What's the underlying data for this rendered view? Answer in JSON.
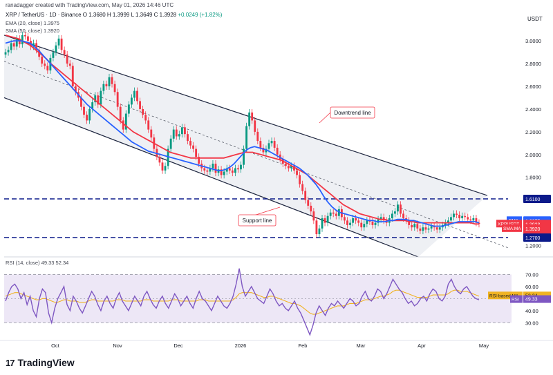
{
  "header": {
    "credit": "ranadagger created with TradingView.com, May 01, 2026 14:46 UTC",
    "currency": "USDT"
  },
  "symbol_line": {
    "symbol": "XRP / TetherUS · 1D · Binance",
    "ohlc": "O 1.3680  H 1.3999  L 1.3649  C 1.3928",
    "change": "+0.0249 (+1.82%)"
  },
  "indicators": {
    "ema": "EMA (20, close)  1.3975",
    "sma": "SMA (50, close)  1.3920",
    "rsi": "RSI (14, close)  49.33  52.34"
  },
  "annotations": {
    "downtrend": "Downtrend line",
    "support": "Support line"
  },
  "right_labels": {
    "level_1610": "1.6100",
    "ema_tag": "EMA",
    "ema_val": "1.3975",
    "pair_tag": "XRPUSDT",
    "pair_val": "1.3928",
    "pair_chg": "-50.52%",
    "pair_time": "09:13:39",
    "sma_tag": "SMA:MA",
    "sma_val": "1.3920",
    "level_1270": "1.2700",
    "rsi_ma_tag": "RSI-based MA",
    "rsi_ma_val": "52.34",
    "rsi_tag": "RSI",
    "rsi_val": "49.33"
  },
  "logo": {
    "mark": "17",
    "name": "TradingView"
  },
  "colors": {
    "up": "#089981",
    "down": "#f23645",
    "ema": "#2962ff",
    "sma": "#f23645",
    "rsi": "#7e57c2",
    "rsi_ma": "#f0b323",
    "channel": "#1f2740"
  },
  "chart_data": {
    "type": "candlestick",
    "y_axis_ticks": [
      3.0,
      2.8,
      2.6,
      2.4,
      2.2,
      2.0,
      1.8,
      1.6,
      1.4,
      1.2
    ],
    "y_axis_labels": [
      "3.0000",
      "2.8000",
      "2.6000",
      "2.4000",
      "2.2000",
      "2.0000",
      "1.8000",
      "1.6000",
      "1.4000",
      "1.2000"
    ],
    "ylim": [
      1.1,
      3.25
    ],
    "x_axis_labels": [
      "Oct",
      "Nov",
      "Dec",
      "2026",
      "Feb",
      "Mar",
      "Apr",
      "May"
    ],
    "horizontal_levels": [
      1.61,
      1.27
    ],
    "series_close": [
      2.9,
      2.92,
      2.98,
      2.95,
      3.02,
      2.97,
      3.05,
      3.04,
      3.0,
      2.95,
      2.98,
      2.92,
      2.86,
      2.8,
      2.78,
      2.74,
      2.85,
      2.9,
      2.96,
      3.02,
      2.92,
      2.88,
      2.8,
      2.78,
      2.6,
      2.55,
      2.5,
      2.42,
      2.35,
      2.3,
      2.4,
      2.46,
      2.52,
      2.44,
      2.56,
      2.62,
      2.6,
      2.68,
      2.62,
      2.55,
      2.42,
      2.3,
      2.22,
      2.36,
      2.44,
      2.5,
      2.56,
      2.47,
      2.4,
      2.35,
      2.3,
      2.22,
      2.15,
      2.05,
      1.98,
      1.93,
      1.86,
      1.9,
      2.05,
      2.14,
      2.22,
      2.16,
      2.18,
      2.24,
      2.18,
      2.12,
      2.08,
      2.05,
      1.98,
      1.92,
      1.88,
      1.86,
      1.85,
      1.88,
      1.92,
      1.84,
      1.87,
      1.82,
      1.85,
      1.88,
      1.86,
      1.84,
      1.88,
      1.87,
      1.91,
      2.05,
      2.25,
      2.37,
      2.3,
      2.2,
      2.12,
      2.06,
      2.02,
      2.05,
      2.1,
      2.12,
      2.06,
      2.0,
      1.96,
      1.92,
      1.9,
      1.88,
      1.9,
      1.86,
      1.82,
      1.74,
      1.68,
      1.6,
      1.55,
      1.5,
      1.42,
      1.3,
      1.35,
      1.44,
      1.4,
      1.46,
      1.49,
      1.48,
      1.46,
      1.52,
      1.45,
      1.42,
      1.38,
      1.4,
      1.44,
      1.42,
      1.4,
      1.36,
      1.39,
      1.42,
      1.41,
      1.38,
      1.4,
      1.43,
      1.45,
      1.42,
      1.4,
      1.44,
      1.48,
      1.5,
      1.56,
      1.48,
      1.44,
      1.42,
      1.38,
      1.36,
      1.39,
      1.35,
      1.33,
      1.36,
      1.34,
      1.35,
      1.37,
      1.36,
      1.34,
      1.36,
      1.38,
      1.4,
      1.42,
      1.45,
      1.48,
      1.47,
      1.44,
      1.46,
      1.45,
      1.43,
      1.42,
      1.44,
      1.4,
      1.39
    ],
    "ema": [
      2.98,
      2.99,
      3.0,
      3.0,
      3.0,
      2.99,
      2.98,
      2.95,
      2.92,
      2.88,
      2.84,
      2.8,
      2.76,
      2.72,
      2.68,
      2.64,
      2.6,
      2.56,
      2.52,
      2.48,
      2.44,
      2.41,
      2.38,
      2.35,
      2.32,
      2.29,
      2.26,
      2.23,
      2.2,
      2.17,
      2.14,
      2.11,
      2.09,
      2.07,
      2.05,
      2.03,
      2.02,
      2.01,
      2.0,
      1.99,
      1.98,
      1.97,
      1.96,
      1.95,
      1.94,
      1.93,
      1.92,
      1.91,
      1.9,
      1.89,
      1.88,
      1.87,
      1.86,
      1.86,
      1.87,
      1.89,
      1.92,
      1.96,
      2.0,
      2.04,
      2.06,
      2.07,
      2.06,
      2.05,
      2.04,
      2.02,
      2.0,
      1.98,
      1.96,
      1.94,
      1.92,
      1.9,
      1.88,
      1.85,
      1.82,
      1.78,
      1.74,
      1.69,
      1.63,
      1.58,
      1.54,
      1.51,
      1.49,
      1.48,
      1.47,
      1.46,
      1.45,
      1.44,
      1.43,
      1.42,
      1.42,
      1.41,
      1.41,
      1.41,
      1.42,
      1.42,
      1.43,
      1.43,
      1.43,
      1.42,
      1.42,
      1.41,
      1.4,
      1.39,
      1.38,
      1.37,
      1.37,
      1.37,
      1.38,
      1.39,
      1.4,
      1.41,
      1.41,
      1.41,
      1.41,
      1.41,
      1.4
    ],
    "sma": [
      3.05,
      3.04,
      3.03,
      3.02,
      3.0,
      2.98,
      2.96,
      2.93,
      2.9,
      2.87,
      2.84,
      2.8,
      2.77,
      2.74,
      2.71,
      2.68,
      2.65,
      2.62,
      2.59,
      2.56,
      2.53,
      2.5,
      2.47,
      2.44,
      2.41,
      2.38,
      2.35,
      2.32,
      2.29,
      2.26,
      2.23,
      2.2,
      2.18,
      2.16,
      2.14,
      2.12,
      2.1,
      2.08,
      2.06,
      2.04,
      2.02,
      2.01,
      2.0,
      1.99,
      1.98,
      1.97,
      1.97,
      1.97,
      1.97,
      1.97,
      1.97,
      1.97,
      1.97,
      1.97,
      1.98,
      1.99,
      2.0,
      2.01,
      2.02,
      2.02,
      2.02,
      2.01,
      2.0,
      1.99,
      1.98,
      1.97,
      1.96,
      1.95,
      1.93,
      1.91,
      1.89,
      1.87,
      1.85,
      1.83,
      1.8,
      1.77,
      1.74,
      1.71,
      1.68,
      1.65,
      1.62,
      1.59,
      1.56,
      1.54,
      1.52,
      1.5,
      1.48,
      1.47,
      1.46,
      1.45,
      1.44,
      1.43,
      1.43,
      1.42,
      1.42,
      1.42,
      1.42,
      1.42,
      1.41,
      1.41,
      1.4,
      1.4,
      1.4,
      1.4,
      1.4,
      1.4,
      1.4,
      1.4,
      1.4,
      1.4,
      1.4,
      1.4,
      1.4,
      1.4,
      1.39,
      1.39
    ],
    "rsi_ticks": [
      70,
      60,
      50,
      40,
      30
    ],
    "rsi_tick_labels": [
      "70.00",
      "60.00",
      "50.00",
      "40.00",
      "30.00"
    ],
    "rsi_ylim": [
      17,
      80
    ],
    "rsi": [
      48,
      55,
      60,
      62,
      58,
      50,
      55,
      45,
      52,
      40,
      35,
      50,
      58,
      55,
      38,
      30,
      42,
      50,
      55,
      60,
      45,
      40,
      52,
      48,
      42,
      38,
      44,
      50,
      56,
      52,
      45,
      40,
      48,
      52,
      46,
      42,
      50,
      55,
      48,
      44,
      40,
      46,
      52,
      48,
      44,
      52,
      56,
      50,
      45,
      42,
      48,
      52,
      46,
      42,
      48,
      54,
      50,
      44,
      48,
      52,
      46,
      42,
      50,
      56,
      50,
      48,
      44,
      40,
      46,
      52,
      48,
      44,
      42,
      46,
      52,
      62,
      75,
      60,
      52,
      56,
      60,
      55,
      50,
      48,
      46,
      52,
      58,
      54,
      48,
      44,
      46,
      42,
      40,
      44,
      48,
      42,
      38,
      32,
      26,
      20,
      28,
      38,
      44,
      40,
      36,
      42,
      46,
      44,
      48,
      45,
      42,
      46,
      50,
      48,
      44,
      46,
      52,
      56,
      50,
      48,
      52,
      58,
      56,
      50,
      54,
      60,
      66,
      62,
      58,
      55,
      50,
      46,
      48,
      44,
      46,
      50,
      52,
      48,
      54,
      58,
      56,
      50,
      48,
      52,
      62,
      66,
      60,
      56,
      54,
      58,
      60,
      56,
      52,
      50,
      49
    ],
    "rsi_ma": [
      52,
      53,
      54,
      55,
      55,
      54,
      53,
      52,
      51,
      50,
      49,
      49,
      50,
      50,
      49,
      48,
      47,
      47,
      48,
      49,
      49,
      48,
      48,
      48,
      47,
      47,
      47,
      48,
      49,
      49,
      48,
      48,
      48,
      48,
      48,
      48,
      49,
      49,
      49,
      48,
      48,
      48,
      48,
      48,
      48,
      49,
      49,
      49,
      48,
      48,
      48,
      48,
      48,
      48,
      49,
      49,
      49,
      48,
      48,
      48,
      48,
      48,
      48,
      49,
      49,
      49,
      48,
      48,
      48,
      48,
      48,
      48,
      48,
      48,
      49,
      51,
      54,
      55,
      55,
      55,
      55,
      54,
      53,
      52,
      51,
      51,
      52,
      52,
      51,
      50,
      49,
      48,
      47,
      46,
      46,
      45,
      44,
      42,
      40,
      38,
      37,
      37,
      38,
      39,
      40,
      41,
      42,
      43,
      44,
      44,
      44,
      45,
      46,
      46,
      46,
      47,
      48,
      49,
      49,
      49,
      50,
      51,
      52,
      52,
      53,
      54,
      56,
      57,
      57,
      56,
      55,
      54,
      53,
      52,
      51,
      51,
      51,
      51,
      52,
      53,
      53,
      53,
      53,
      53,
      54,
      56,
      57,
      57,
      56,
      56,
      56,
      55,
      54,
      53,
      52
    ]
  }
}
